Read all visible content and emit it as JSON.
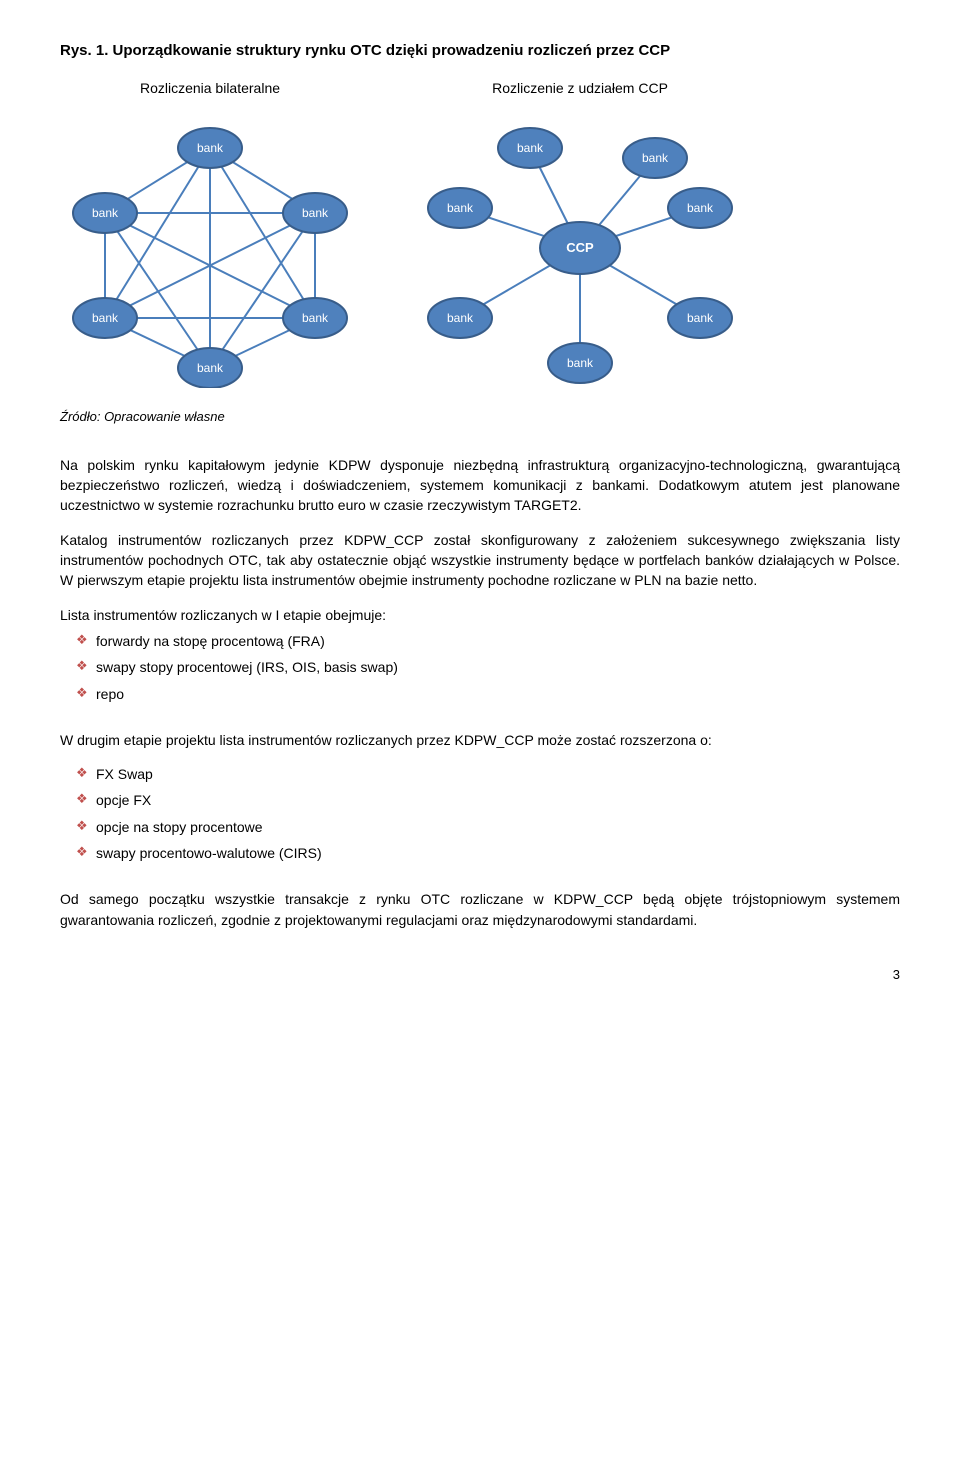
{
  "figure": {
    "title_prefix": "Rys. 1.",
    "title_rest": " Uporządkowanie struktury rynku OTC dzięki prowadzeniu rozliczeń przez CCP",
    "left_label": "Rozliczenia bilateralne",
    "right_label": "Rozliczenie z udziałem CCP",
    "caption": "Źródło: Opracowanie własne",
    "node_fill": "#4f81bd",
    "node_stroke": "#385d8a",
    "edge_color": "#4a7ebb",
    "bank_label": "bank",
    "ccp_label": "CCP"
  },
  "body": {
    "p1": "Na polskim rynku kapitałowym jedynie KDPW dysponuje niezbędną infrastrukturą organizacyjno-technologiczną, gwarantującą bezpieczeństwo rozliczeń, wiedzą i doświadczeniem, systemem komunikacji z bankami. Dodatkowym atutem jest planowane uczestnictwo w systemie rozrachunku brutto euro w czasie rzeczywistym TARGET2.",
    "p2": "Katalog instrumentów rozliczanych przez KDPW_CCP został skonfigurowany z założeniem sukcesywnego zwiększania listy instrumentów pochodnych OTC, tak aby ostatecznie objąć wszystkie instrumenty będące w portfelach banków działających w Polsce. W pierwszym etapie projektu lista instrumentów obejmie instrumenty pochodne rozliczane w PLN na bazie netto.",
    "p3": "Lista instrumentów rozliczanych w I etapie obejmuje:",
    "list1": [
      "forwardy na stopę procentową (FRA)",
      "swapy stopy procentowej (IRS, OIS, basis swap)",
      "repo"
    ],
    "p4": "W drugim etapie projektu lista instrumentów rozliczanych przez  KDPW_CCP może zostać rozszerzona o:",
    "list2": [
      "FX Swap",
      "opcje FX",
      "opcje na stopy procentowe",
      "swapy procentowo-walutowe (CIRS)"
    ],
    "p5": "Od samego początku wszystkie transakcje z rynku OTC rozliczane w KDPW_CCP będą objęte trójstopniowym systemem gwarantowania rozliczeń, zgodnie z projektowanymi regulacjami oraz międzynarodowymi standardami."
  },
  "page_number": "3",
  "bullet_color": "#c0504d"
}
